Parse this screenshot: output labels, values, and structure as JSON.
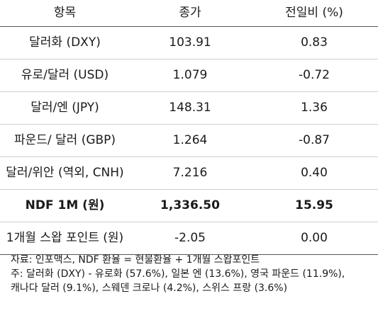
{
  "table": {
    "headers": [
      "항목",
      "종가",
      "전일비 (%)"
    ],
    "rows": [
      {
        "item": "달러화 (DXY)",
        "close": "103.91",
        "change": "0.83"
      },
      {
        "item": "유로/달러 (USD)",
        "close": "1.079",
        "change": "-0.72"
      },
      {
        "item": "달러/엔 (JPY)",
        "close": "148.31",
        "change": "1.36"
      },
      {
        "item": "파운드/ 달러 (GBP)",
        "close": "1.264",
        "change": "-0.87"
      },
      {
        "item": "달러/위안 (역외, CNH)",
        "close": "7.216",
        "change": "0.40"
      },
      {
        "item": "NDF 1M (원)",
        "close": "1,336.50",
        "change": "15.95"
      },
      {
        "item": "1개월 스왑 포인트 (원)",
        "close": "-2.05",
        "change": "0.00"
      }
    ]
  },
  "notes": {
    "source": "자료: 인포맥스, NDF 환율 = 현물환율 + 1개월 스왑포인트",
    "note_line1": "주: 달러화 (DXY) - 유로화 (57.6%), 일본 엔 (13.6%), 영국 파운드 (11.9%),",
    "note_line2": "캐나다 달러 (9.1%), 스웨덴 크로나 (4.2%), 스위스 프랑 (3.6%)"
  }
}
